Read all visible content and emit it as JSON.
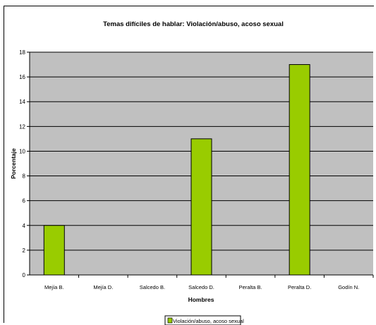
{
  "chart_data": {
    "type": "bar",
    "title": "Temas difíciles de hablar: Violación/abuso, acoso sexual",
    "xlabel": "Hombres",
    "ylabel": "Porcentaje",
    "categories": [
      "Mejía B.",
      "Mejía D.",
      "Salcedo B.",
      "Salcedo D.",
      "Peralta B.",
      "Peralta D.",
      "Godín N."
    ],
    "series": [
      {
        "name": "Violación/abuso, acoso sexual",
        "values": [
          4,
          0,
          0,
          11,
          0,
          17,
          0
        ]
      }
    ],
    "ylim": [
      0,
      18
    ],
    "yticks": [
      "0",
      "2",
      "4",
      "6",
      "8",
      "10",
      "12",
      "14",
      "16",
      "18"
    ],
    "grid": true,
    "legend_position": "bottom",
    "colors": {
      "plot_background": "#c0c0c0",
      "bar_fill": "#99cc00",
      "bar_stroke": "#000000",
      "gridline": "#000000"
    }
  }
}
